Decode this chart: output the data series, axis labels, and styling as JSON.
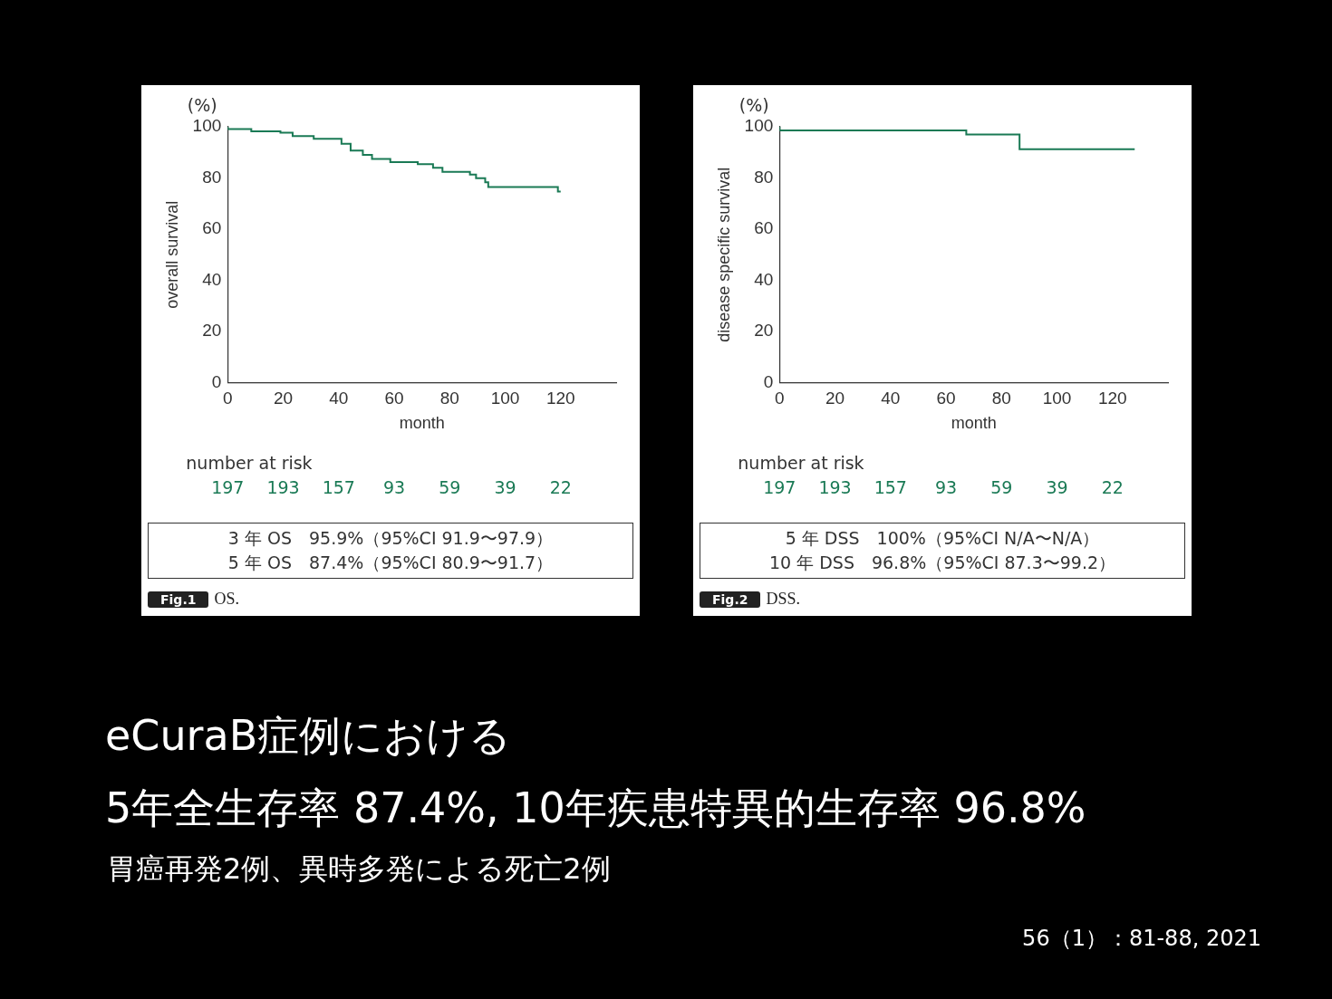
{
  "chart_data": [
    {
      "type": "step",
      "ylabel": "overall survival",
      "xlabel": "month",
      "xlim": [
        0,
        140
      ],
      "xticks": [
        0,
        20,
        40,
        60,
        80,
        100,
        120
      ],
      "ylim": [
        0,
        100
      ],
      "yticks": [
        0,
        20,
        40,
        60,
        80,
        100
      ],
      "x": [
        0,
        8.5,
        19,
        23.4,
        31,
        41,
        44.3,
        48.7,
        52,
        58.6,
        68.5,
        74,
        77.4,
        87.3,
        89.5,
        92.8,
        93.9,
        119,
        120
      ],
      "series": [
        {
          "color": "#1a7a55",
          "values": [
            100,
            99.1,
            98.2,
            97.7,
            96.4,
            95.3,
            93.4,
            90.7,
            89,
            87.4,
            86.2,
            85.4,
            84,
            82.4,
            81.3,
            79.9,
            78.3,
            76.5,
            74.7
          ]
        }
      ],
      "annotations": [
        "(%)",
        "number at risk",
        "197",
        "193",
        "157",
        "93",
        "59",
        "39",
        "22",
        "3 年 OS　95.9%（95%CI 91.9〜97.9）",
        "5 年 OS　87.4%（95%CI 80.9〜91.7）",
        "Fig.1",
        "OS."
      ]
    },
    {
      "type": "step",
      "ylabel": "disease specific survival",
      "xlabel": "month",
      "xlim": [
        0,
        140
      ],
      "xticks": [
        0,
        20,
        40,
        60,
        80,
        100,
        120
      ],
      "ylim": [
        0,
        100
      ],
      "yticks": [
        0,
        20,
        40,
        60,
        80,
        100
      ],
      "x": [
        0,
        67.3,
        86.5,
        128
      ],
      "series": [
        {
          "color": "#1a7a55",
          "values": [
            100,
            98.6,
            97,
            91.2
          ]
        }
      ],
      "annotations": [
        "(%)",
        "number at risk",
        "197",
        "193",
        "157",
        "93",
        "59",
        "39",
        "22",
        "5 年 DSS　100%（95%CI N/A〜N/A）",
        "10 年 DSS　96.8%（95%CI 87.3〜99.2）",
        "Fig.2",
        "DSS."
      ]
    },
    {
      "type": "other",
      "title": "eCuraB症例における",
      "subtitle": "5年全生存率 87.4%, 10年疾患特異的生存率 96.8%",
      "annotations": [
        "胃癌再発2例、異時多発による死亡2例",
        "56（1）：81-88, 2021"
      ]
    }
  ]
}
